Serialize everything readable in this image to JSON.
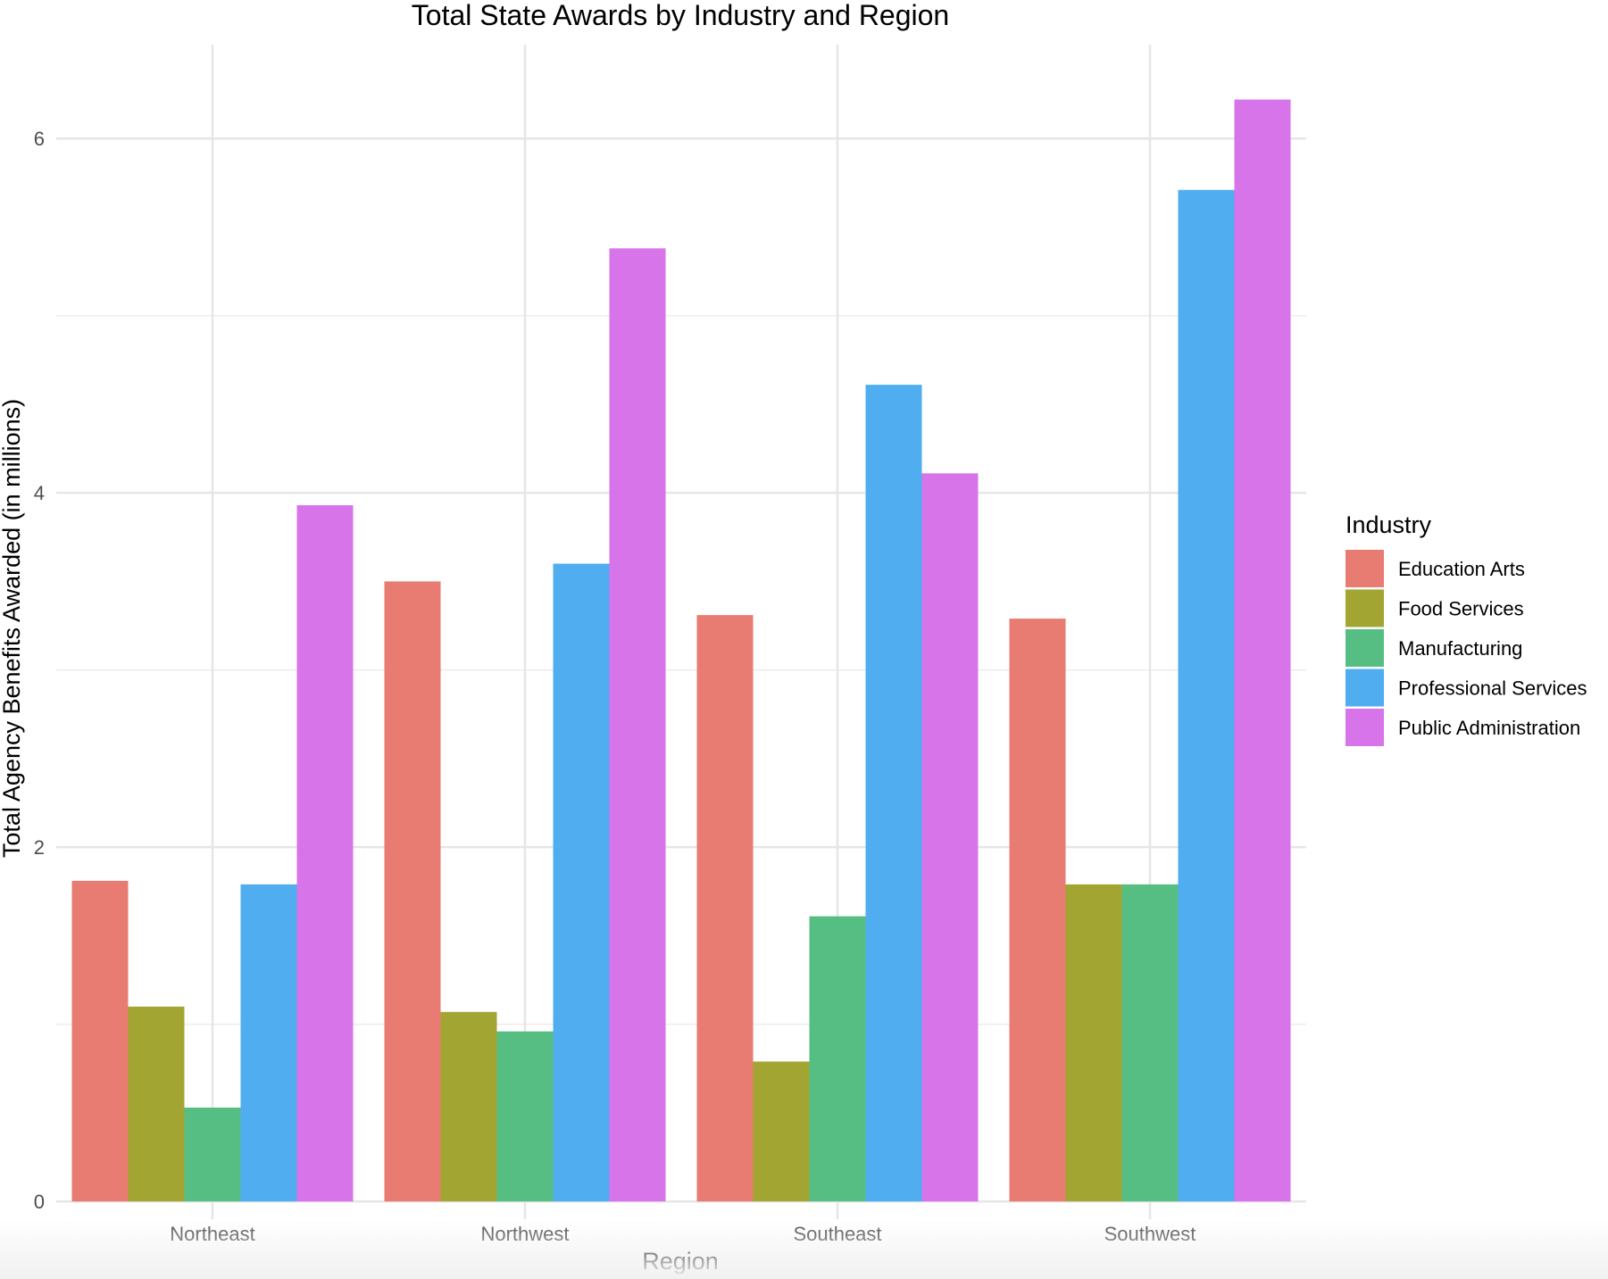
{
  "chart_data": {
    "type": "bar",
    "title": "Total State Awards by Industry and Region",
    "xlabel": "Region",
    "ylabel": "Total Agency Benefits Awarded (in millions)",
    "categories": [
      "Northeast",
      "Northwest",
      "Southeast",
      "Southwest"
    ],
    "ylim": [
      -0.1,
      6.53
    ],
    "yticks": [
      0,
      2,
      4,
      6
    ],
    "grid": true,
    "legend": {
      "title": "Industry",
      "position": "right"
    },
    "series": [
      {
        "name": "Education Arts",
        "color": "#E87B72",
        "values": [
          1.81,
          3.5,
          3.31,
          3.29
        ]
      },
      {
        "name": "Food Services",
        "color": "#A3A533",
        "values": [
          1.1,
          1.07,
          0.79,
          1.79
        ]
      },
      {
        "name": "Manufacturing",
        "color": "#57BE83",
        "values": [
          0.53,
          0.96,
          1.61,
          1.79
        ]
      },
      {
        "name": "Professional Services",
        "color": "#4FADF0",
        "values": [
          1.79,
          3.6,
          4.61,
          5.71
        ]
      },
      {
        "name": "Public Administration",
        "color": "#D874EA",
        "values": [
          3.93,
          5.38,
          4.11,
          6.22
        ]
      }
    ]
  }
}
